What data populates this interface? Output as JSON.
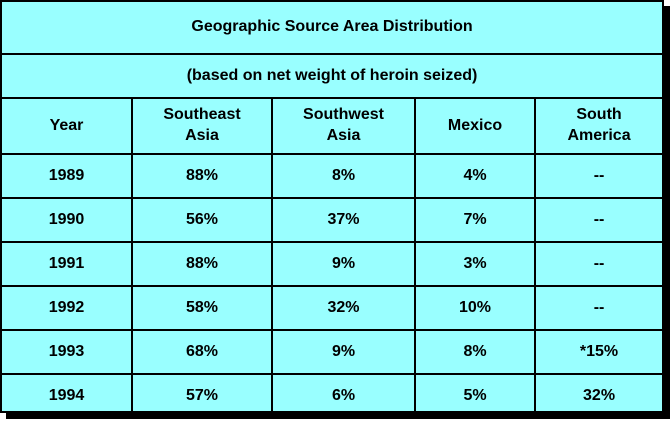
{
  "title": "Geographic Source Area Distribution",
  "subtitle": "(based on net weight of heroin seized)",
  "columns": {
    "year": "Year",
    "southeast_asia": "Southeast\nAsia",
    "southwest_asia": "Southwest\nAsia",
    "mexico": "Mexico",
    "south_america": "South\nAmerica"
  },
  "rows": [
    {
      "year": "1989",
      "southeast_asia": "88%",
      "southwest_asia": "8%",
      "mexico": "4%",
      "south_america": "--"
    },
    {
      "year": "1990",
      "southeast_asia": "56%",
      "southwest_asia": "37%",
      "mexico": "7%",
      "south_america": "--"
    },
    {
      "year": "1991",
      "southeast_asia": "88%",
      "southwest_asia": "9%",
      "mexico": "3%",
      "south_america": "--"
    },
    {
      "year": "1992",
      "southeast_asia": "58%",
      "southwest_asia": "32%",
      "mexico": "10%",
      "south_america": "--"
    },
    {
      "year": "1993",
      "southeast_asia": "68%",
      "southwest_asia": "9%",
      "mexico": "8%",
      "south_america": "*15%"
    },
    {
      "year": "1994",
      "southeast_asia": "57%",
      "southwest_asia": "6%",
      "mexico": "5%",
      "south_america": "32%"
    }
  ],
  "colors": {
    "cell_background": "#99ffff",
    "border": "#000000",
    "text": "#000000"
  }
}
